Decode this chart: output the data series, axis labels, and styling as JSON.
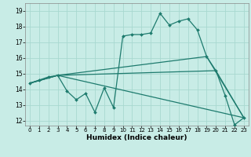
{
  "xlabel": "Humidex (Indice chaleur)",
  "xlim": [
    -0.5,
    23.5
  ],
  "ylim": [
    11.7,
    19.5
  ],
  "xticks": [
    0,
    1,
    2,
    3,
    4,
    5,
    6,
    7,
    8,
    9,
    10,
    11,
    12,
    13,
    14,
    15,
    16,
    17,
    18,
    19,
    20,
    21,
    22,
    23
  ],
  "yticks": [
    12,
    13,
    14,
    15,
    16,
    17,
    18,
    19
  ],
  "background_color": "#c8ece6",
  "line_color": "#1e7b6e",
  "grid_color": "#a8d8d0",
  "lines": [
    {
      "x": [
        0,
        1,
        2,
        3,
        4,
        5,
        6,
        7,
        8,
        9,
        10,
        11,
        12,
        13,
        14,
        15,
        16,
        17,
        18,
        19,
        20,
        21,
        22,
        23
      ],
      "y": [
        14.4,
        14.6,
        14.8,
        14.9,
        13.9,
        13.35,
        13.75,
        12.55,
        14.1,
        12.85,
        17.4,
        17.5,
        17.5,
        17.6,
        18.85,
        18.1,
        18.35,
        18.5,
        17.8,
        16.1,
        15.2,
        13.6,
        11.75,
        12.2
      ]
    },
    {
      "x": [
        0,
        3,
        23
      ],
      "y": [
        14.4,
        14.9,
        12.2
      ]
    },
    {
      "x": [
        0,
        3,
        20,
        23
      ],
      "y": [
        14.4,
        14.9,
        15.2,
        12.2
      ]
    },
    {
      "x": [
        0,
        3,
        19,
        23
      ],
      "y": [
        14.4,
        14.9,
        16.1,
        12.2
      ]
    }
  ]
}
